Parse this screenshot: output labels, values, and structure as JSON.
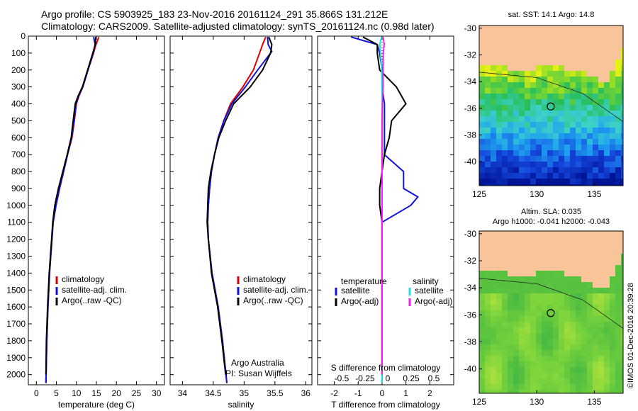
{
  "header": {
    "line1": "Argo profile: CS 5903925_183 23-Nov-2016 20161124_291 35.866S 131.212E",
    "line2": "Climatology: CARS2009. Satellite-adjusted climatology: synTS_20161124.nc (0.98d later)"
  },
  "footer_stamp": "©IMOS 01-Dec-2016 20:39:28",
  "colors": {
    "climatology": "#dd0000",
    "satellite": "#1111dd",
    "argo": "#000000",
    "satellite_s": "#22dddd",
    "argo_s": "#ee22ee",
    "land": "#f8c49a"
  },
  "chart_data": [
    {
      "type": "line",
      "id": "temperature",
      "xlabel": "temperature (deg C)",
      "xlim": [
        -2,
        32
      ],
      "ylim": [
        2060,
        0
      ],
      "y_reversed": true,
      "xticks": [
        0,
        5,
        10,
        15,
        20,
        25,
        30
      ],
      "yticks": [
        0,
        100,
        200,
        300,
        400,
        500,
        600,
        700,
        800,
        900,
        1000,
        1100,
        1200,
        1300,
        1400,
        1500,
        1600,
        1700,
        1800,
        1900,
        2000
      ],
      "legend": [
        "climatology",
        "satellite-adj. clim.",
        "Argo(..raw -QC)"
      ],
      "legend_position": "bottom-right",
      "series": [
        {
          "name": "climatology",
          "color": "#dd0000",
          "y": [
            5,
            50,
            100,
            200,
            300,
            350,
            400,
            500,
            600,
            700,
            800,
            900,
            1000,
            1100,
            1200,
            1400,
            1600,
            1800,
            2050
          ],
          "x": [
            15.6,
            14.9,
            14.3,
            12.9,
            11.6,
            10.7,
            10.0,
            9.5,
            8.9,
            7.8,
            6.8,
            5.8,
            4.9,
            4.2,
            3.9,
            3.3,
            2.9,
            2.6,
            2.4
          ]
        },
        {
          "name": "satellite-adj. clim.",
          "color": "#1111dd",
          "y": [
            5,
            50,
            100,
            200,
            300,
            350,
            400,
            500,
            600,
            700,
            800,
            900,
            1000,
            1100,
            1200,
            1400,
            1600,
            1800,
            2050
          ],
          "x": [
            14.3,
            14.7,
            14.2,
            12.9,
            11.6,
            10.6,
            9.9,
            9.4,
            8.8,
            7.8,
            6.8,
            5.8,
            4.9,
            4.2,
            3.9,
            3.3,
            2.9,
            2.6,
            2.4
          ]
        },
        {
          "name": "Argo(..raw -QC)",
          "color": "#000000",
          "y": [
            5,
            50,
            100,
            200,
            300,
            350,
            400,
            500,
            600,
            700,
            800,
            900,
            1000,
            1100,
            1200,
            1400,
            1600,
            1800,
            2000
          ],
          "x": [
            14.8,
            14.7,
            14.1,
            12.8,
            11.5,
            10.5,
            9.7,
            9.2,
            8.7,
            7.7,
            6.6,
            5.5,
            4.6,
            4.1,
            3.8,
            3.2,
            2.8,
            2.5,
            2.4
          ]
        }
      ]
    },
    {
      "type": "line",
      "id": "salinity",
      "xlabel": "salinity",
      "xlim": [
        33.8,
        36.1
      ],
      "ylim": [
        2060,
        0
      ],
      "y_reversed": true,
      "xticks": [
        34,
        34.5,
        35,
        35.5,
        36
      ],
      "legend": [
        "climatology",
        "satellite-adj. clim.",
        "Argo(..raw -QC)"
      ],
      "legend_position": "bottom-right",
      "annotation": [
        "Argo Australia",
        "PI: Susan Wijffels"
      ],
      "series": [
        {
          "name": "climatology",
          "color": "#dd0000",
          "y": [
            5,
            50,
            100,
            200,
            300,
            400,
            500,
            600,
            700,
            800,
            900,
            1000,
            1100,
            1200,
            1400,
            1600,
            1800,
            2050
          ],
          "x": [
            35.35,
            35.3,
            35.25,
            35.15,
            34.98,
            34.78,
            34.67,
            34.58,
            34.52,
            34.47,
            34.44,
            34.42,
            34.41,
            34.42,
            34.48,
            34.58,
            34.65,
            34.72
          ]
        },
        {
          "name": "satellite-adj. clim.",
          "color": "#1111dd",
          "y": [
            5,
            50,
            90,
            200,
            300,
            400,
            500,
            600,
            700,
            800,
            900,
            1000,
            1100,
            1200,
            1400,
            1600,
            1800,
            2050
          ],
          "x": [
            35.38,
            35.39,
            35.45,
            35.22,
            35.02,
            34.8,
            34.67,
            34.58,
            34.52,
            34.47,
            34.44,
            34.42,
            34.41,
            34.42,
            34.48,
            34.58,
            34.65,
            34.72
          ]
        },
        {
          "name": "Argo(..raw -QC)",
          "color": "#000000",
          "y": [
            5,
            50,
            100,
            200,
            300,
            400,
            500,
            600,
            700,
            800,
            900,
            1000,
            1100,
            1200,
            1400,
            1600,
            1800,
            2000
          ],
          "x": [
            35.4,
            35.45,
            35.43,
            35.3,
            35.1,
            34.83,
            34.7,
            34.59,
            34.52,
            34.46,
            34.42,
            34.41,
            34.4,
            34.42,
            34.47,
            34.57,
            34.64,
            34.7
          ]
        }
      ]
    },
    {
      "type": "line",
      "id": "difference",
      "xlabel": "T difference from climatology",
      "xlabel2": "S difference from climatology",
      "xlim": [
        -2.7,
        3
      ],
      "ylim": [
        2060,
        0
      ],
      "y_reversed": true,
      "xticks": [
        -2,
        -1,
        0,
        1,
        2
      ],
      "xticks2": [
        "-0.5",
        "-0.25",
        "0",
        "0.25",
        "0.5"
      ],
      "legend_headers": [
        "temperature",
        "salinity"
      ],
      "legend": [
        "satellite",
        "Argo(-adj)",
        "satellite",
        "Argo(-adj)"
      ],
      "legend_position": "bottom-right",
      "series": [
        {
          "name": "temperature satellite",
          "color": "#1111dd",
          "y": [
            5,
            50,
            100,
            200,
            300,
            400,
            500,
            600,
            700,
            800,
            900,
            950,
            1000,
            1100,
            1200,
            1400,
            1600,
            1800,
            2050
          ],
          "x": [
            -1.3,
            -0.2,
            -0.1,
            0.0,
            0.0,
            0.1,
            0.1,
            0.1,
            0.1,
            0.9,
            0.9,
            1.5,
            1.2,
            0.0,
            0.0,
            0.0,
            0.0,
            0.0,
            0.0
          ]
        },
        {
          "name": "temperature Argo(-adj)",
          "color": "#000000",
          "y": [
            5,
            50,
            100,
            200,
            300,
            400,
            500,
            600,
            700,
            800,
            900,
            1000,
            1100,
            1200,
            1400,
            1600,
            1800,
            2000
          ],
          "x": [
            -0.8,
            -0.2,
            -0.2,
            -0.1,
            0.6,
            1.0,
            0.4,
            0.3,
            0.1,
            0.0,
            -0.1,
            -0.1,
            0.0,
            0.0,
            0.0,
            0.0,
            0.0,
            0.0
          ]
        },
        {
          "name": "salinity satellite",
          "color": "#22dddd",
          "y": [
            5,
            50,
            100,
            200,
            300,
            400,
            500,
            600,
            700,
            800,
            900,
            1000,
            1100,
            1200,
            1400,
            1600,
            1800,
            2050
          ],
          "x": [
            -0.02,
            -0.1,
            -0.06,
            -0.02,
            0.0,
            0.01,
            0.0,
            0.0,
            0.0,
            0.0,
            0.0,
            0.0,
            0.0,
            0.0,
            0.0,
            0.0,
            0.0,
            0.0
          ]
        },
        {
          "name": "salinity Argo(-adj)",
          "color": "#ee22ee",
          "y": [
            5,
            50,
            100,
            200,
            300,
            400,
            500,
            600,
            700,
            800,
            900,
            1000,
            1100,
            1200,
            1400,
            1600,
            1800,
            2000
          ],
          "x": [
            0.05,
            0.09,
            0.05,
            0.04,
            0.04,
            0.01,
            0.0,
            0.0,
            0.0,
            0.0,
            0.0,
            0.0,
            0.0,
            0.0,
            0.0,
            0.0,
            0.0,
            0.0
          ]
        }
      ]
    },
    {
      "type": "heatmap",
      "id": "sst-map",
      "title": "sat. SST: 14.1 Argo: 14.8",
      "xlim": [
        125,
        137.5
      ],
      "ylim": [
        -41.8,
        -29.8
      ],
      "xticks": [
        125,
        130,
        135
      ],
      "yticks": [
        -30,
        -32,
        -34,
        -36,
        -38,
        -40
      ],
      "marker": {
        "lon": 131.212,
        "lat": -35.866
      }
    },
    {
      "type": "heatmap",
      "id": "sla-map",
      "title": "Altim. SLA: 0.035",
      "subtitle": "Argo h1000: -0.041 h2000: -0.043",
      "xlim": [
        125,
        137.5
      ],
      "ylim": [
        -41.8,
        -29.8
      ],
      "xticks": [
        125,
        130,
        135
      ],
      "yticks": [
        -30,
        -32,
        -34,
        -36,
        -38,
        -40
      ],
      "marker": {
        "lon": 131.212,
        "lat": -35.866
      }
    }
  ]
}
